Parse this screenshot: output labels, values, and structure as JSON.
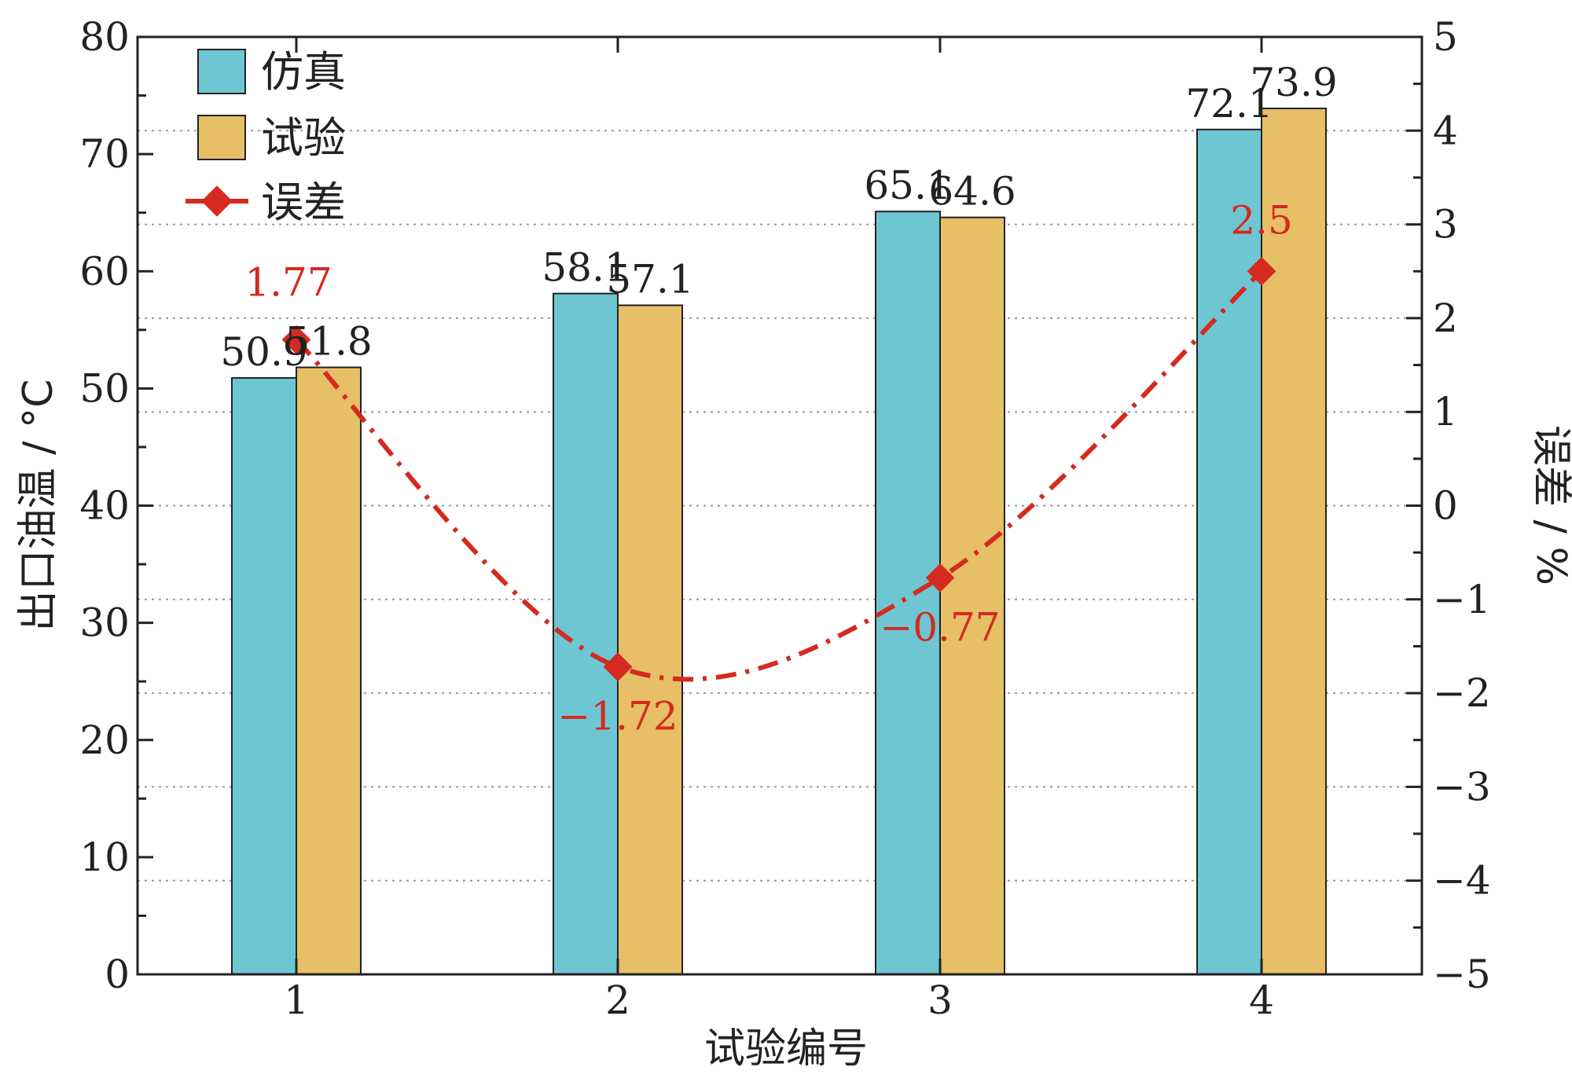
{
  "chart_data": {
    "type": "bar",
    "categories": [
      "1",
      "2",
      "3",
      "4"
    ],
    "series": [
      {
        "name": "仿真",
        "values": [
          50.9,
          58.1,
          65.1,
          72.1
        ],
        "color": "#6ec6d3",
        "labels": [
          "50.9",
          "58.1",
          "65.1",
          "72.1"
        ]
      },
      {
        "name": "试验",
        "values": [
          51.8,
          57.1,
          64.6,
          73.9
        ],
        "color": "#e6bf66",
        "labels": [
          "51.8",
          "57.1",
          "64.6",
          "73.9"
        ]
      }
    ],
    "error_series": {
      "name": "误差",
      "axis": "right",
      "type": "line",
      "values": [
        1.77,
        -1.72,
        -0.77,
        2.5
      ],
      "labels": [
        "1.77",
        "−1.72",
        "−0.77",
        "2.5"
      ],
      "color": "#d42a1f"
    },
    "xlabel": "试验编号",
    "ylabel": "出口油温 / °C",
    "y2label": "误差 / %",
    "ylim": [
      0,
      80
    ],
    "y2lim": [
      -5,
      5
    ],
    "yticks": [
      "0",
      "10",
      "20",
      "30",
      "40",
      "50",
      "60",
      "70",
      "80"
    ],
    "y2ticks": [
      "−5",
      "−4",
      "−3",
      "−2",
      "−1",
      "0",
      "1",
      "2",
      "3",
      "4",
      "5"
    ],
    "grid": "dotted horizontal",
    "legend": "top-left"
  }
}
